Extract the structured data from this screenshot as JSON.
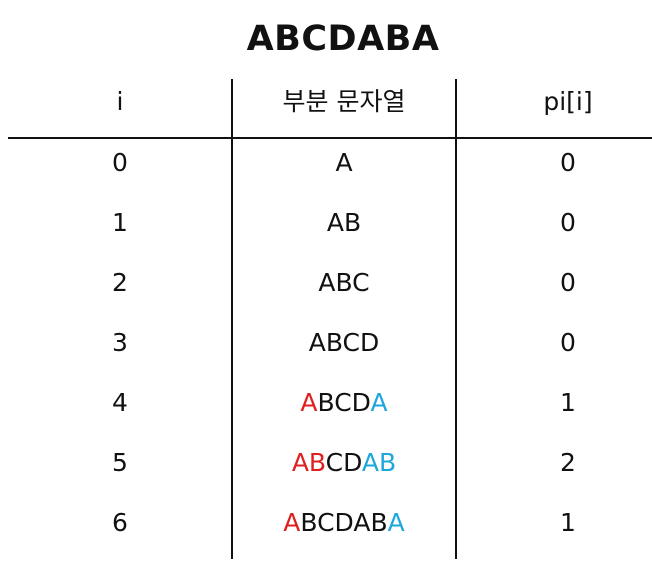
{
  "title": "ABCDABA",
  "headers": {
    "i": "i",
    "substring": "부분 문자열",
    "pi": "pi[i]"
  },
  "colors": {
    "prefix_match": "#e02020",
    "suffix_match": "#1ea7dc",
    "text": "#111111"
  },
  "rows": [
    {
      "i": "0",
      "pi": "0",
      "segments": [
        {
          "text": "A",
          "color": "plain"
        }
      ]
    },
    {
      "i": "1",
      "pi": "0",
      "segments": [
        {
          "text": "AB",
          "color": "plain"
        }
      ]
    },
    {
      "i": "2",
      "pi": "0",
      "segments": [
        {
          "text": "ABC",
          "color": "plain"
        }
      ]
    },
    {
      "i": "3",
      "pi": "0",
      "segments": [
        {
          "text": "ABCD",
          "color": "plain"
        }
      ]
    },
    {
      "i": "4",
      "pi": "1",
      "segments": [
        {
          "text": "A",
          "color": "red"
        },
        {
          "text": "BCD",
          "color": "plain"
        },
        {
          "text": "A",
          "color": "blue"
        }
      ]
    },
    {
      "i": "5",
      "pi": "2",
      "segments": [
        {
          "text": "AB",
          "color": "red"
        },
        {
          "text": "CD",
          "color": "plain"
        },
        {
          "text": "AB",
          "color": "blue"
        }
      ]
    },
    {
      "i": "6",
      "pi": "1",
      "segments": [
        {
          "text": "A",
          "color": "red"
        },
        {
          "text": "BCDAB",
          "color": "plain"
        },
        {
          "text": "A",
          "color": "blue"
        }
      ]
    }
  ]
}
